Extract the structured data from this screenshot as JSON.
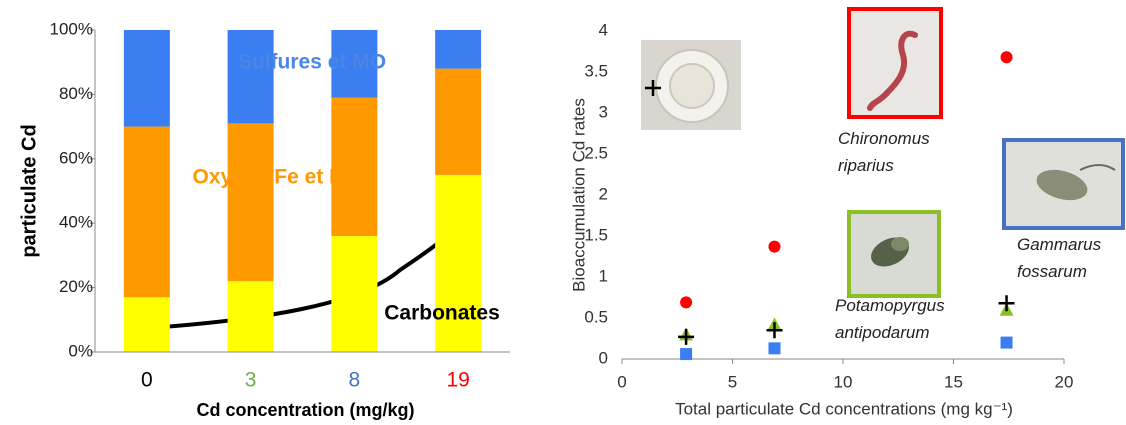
{
  "chart_data": [
    {
      "type": "bar",
      "stacked": true,
      "y_label": "particulate Cd",
      "x_label": "Cd concentration (mg/kg)",
      "categories": [
        "0",
        "3",
        "8",
        "19"
      ],
      "category_colors": [
        "#000000",
        "#70ad47",
        "#4472c4",
        "#ff0000"
      ],
      "series": [
        {
          "name": "Carbonates",
          "color": "#ffff00",
          "label_color": "#000000",
          "values": [
            17,
            22,
            36,
            55
          ]
        },
        {
          "name": "Oxydes Fe et Mn",
          "color": "#ff9900",
          "label_color": "#ff9900",
          "values": [
            53,
            49,
            43,
            33
          ]
        },
        {
          "name": "Sulfures et MO",
          "color": "#3a7ef2",
          "label_color": "#4a86e8",
          "values": [
            30,
            29,
            21,
            12
          ]
        }
      ],
      "ylim": [
        0,
        100
      ],
      "yticks": [
        {
          "value": 0,
          "label": "0%"
        },
        {
          "value": 20,
          "label": "20%"
        },
        {
          "value": 40,
          "label": "40%"
        },
        {
          "value": 60,
          "label": "60%"
        },
        {
          "value": 80,
          "label": "80%"
        },
        {
          "value": 100,
          "label": "100%"
        }
      ]
    },
    {
      "type": "scatter",
      "y_label": "Bioaccumulation Cd rates",
      "x_label": "Total particulate Cd concentrations (mg kg⁻¹)",
      "x": [
        2.9,
        6.9,
        17.4
      ],
      "series": [
        {
          "name": "Chironomus riparius",
          "color": "#ff0000",
          "marker": "circle",
          "values": [
            0.69,
            1.37,
            3.68
          ]
        },
        {
          "color": "#000000",
          "marker": "plus",
          "values": [
            0.27,
            0.35,
            0.68
          ]
        },
        {
          "name": "Potamopyrgus antipodarum",
          "color": "#8cbf26",
          "marker": "triangle",
          "values": [
            0.3,
            0.42,
            0.6
          ]
        },
        {
          "name": "Gammarus fossarum",
          "color": "#3a7ef2",
          "marker": "square",
          "values": [
            0.06,
            0.13,
            0.2
          ]
        }
      ],
      "xlim": [
        0,
        20
      ],
      "xticks": [
        0,
        5,
        10,
        15,
        20
      ],
      "ylim": [
        0,
        4
      ],
      "yticks": [
        0,
        0.5,
        1,
        1.5,
        2,
        2.5,
        3,
        3.5,
        4
      ]
    }
  ]
}
